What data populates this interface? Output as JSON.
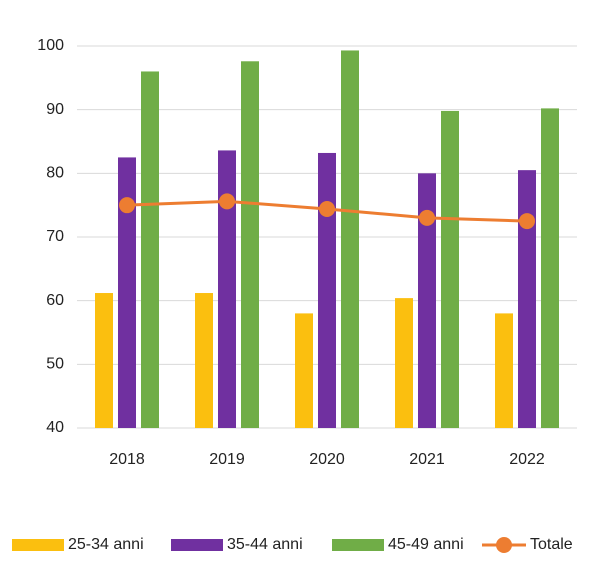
{
  "chart_data": {
    "type": "bar",
    "categories": [
      "2018",
      "2019",
      "2020",
      "2021",
      "2022"
    ],
    "series": [
      {
        "name": "25-34 anni",
        "color": "#fbbf0f",
        "values": [
          61.2,
          61.2,
          58.0,
          60.4,
          58.0
        ]
      },
      {
        "name": "35-44 anni",
        "color": "#7030a0",
        "values": [
          82.5,
          83.6,
          83.2,
          80.0,
          80.5
        ]
      },
      {
        "name": "45-49 anni",
        "color": "#70ad47",
        "values": [
          96.0,
          97.6,
          99.3,
          89.8,
          90.2
        ]
      },
      {
        "name": "Totale",
        "color": "#ed7d31",
        "type": "line",
        "values": [
          75.0,
          75.6,
          74.4,
          73.0,
          72.5
        ]
      }
    ],
    "ylim": [
      40,
      100
    ],
    "yticks": [
      40,
      50,
      60,
      70,
      80,
      90,
      100
    ],
    "grid": true,
    "legend": "bottom"
  }
}
